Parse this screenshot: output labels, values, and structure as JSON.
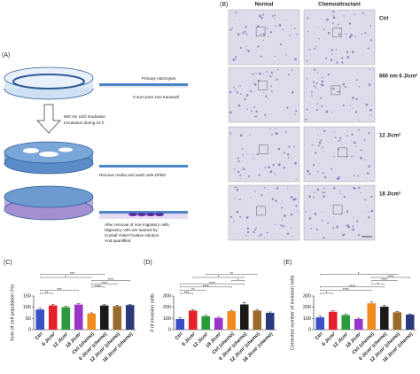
{
  "figure_a": {
    "label": "(A)",
    "transwell_labels": [
      "Primary Astrocytes",
      "0.4um pore size transwell"
    ],
    "treatment": [
      "660 nm LED irradiation",
      "Incubation during 24 h"
    ],
    "wash": "Remove media and wash with DPBS",
    "stain": [
      "After removal of non-migratory cells,",
      "Migratory cells are stained by",
      "Crystal Violet Fixative solution",
      "And quantified"
    ]
  },
  "figure_b": {
    "label": "(B)",
    "columns": [
      "Normal",
      "Chemoattractant"
    ],
    "rows": [
      "Ctrl",
      "660 nm 6 J/cm²",
      "12 J/cm²",
      "18 J/cm²"
    ]
  },
  "chart_data": [
    {
      "type": "bar",
      "panel_label": "(C)",
      "y_label": "Sum of cell population (%)",
      "categories": [
        "Ctrl",
        "6 J/cm²",
        "12 J/cm²",
        "18 J/cm²",
        "Ctrl (chemo)",
        "6 J/cm² (chemo)",
        "12 J/cm² (chemo)",
        "18 J/cm² (chemo)"
      ],
      "values": [
        90,
        108,
        100,
        112,
        72,
        108,
        105,
        110
      ],
      "errors": [
        6,
        4,
        5,
        4,
        3,
        4,
        4,
        3
      ],
      "colors": [
        "#3a4fc6",
        "#e62129",
        "#2a9a3a",
        "#9a35c9",
        "#f08b1d",
        "#1b1b1b",
        "#9a6a2b",
        "#2b3a7c"
      ],
      "ylim": [
        0,
        150
      ],
      "yticks": [
        0,
        50,
        100,
        150
      ],
      "significance": [
        {
          "between": [
            0,
            1
          ],
          "label": "**"
        },
        {
          "between": [
            0,
            3
          ],
          "label": "***"
        },
        {
          "between": [
            4,
            5
          ],
          "label": "****"
        },
        {
          "between": [
            4,
            6
          ],
          "label": "****"
        },
        {
          "between": [
            4,
            7
          ],
          "label": "****"
        },
        {
          "between": [
            0,
            4
          ],
          "label": "*"
        },
        {
          "between": [
            0,
            5
          ],
          "label": "***"
        }
      ]
    },
    {
      "type": "bar",
      "panel_label": "(D)",
      "y_label": "# of invasion cells",
      "categories": [
        "Ctrl",
        "6 J/cm²",
        "12 J/cm²",
        "18 J/cm²",
        "Ctrl (chemo)",
        "6 J/cm² (chemo)",
        "12 J/cm² (chemo)",
        "18 J/cm² (chemo)"
      ],
      "values": [
        95,
        170,
        120,
        105,
        165,
        225,
        170,
        150
      ],
      "errors": [
        10,
        8,
        8,
        7,
        8,
        18,
        10,
        8
      ],
      "colors": [
        "#3a4fc6",
        "#e62129",
        "#2a9a3a",
        "#9a35c9",
        "#f08b1d",
        "#1b1b1b",
        "#9a6a2b",
        "#2b3a7c"
      ],
      "ylim": [
        0,
        300
      ],
      "yticks": [
        0,
        100,
        200,
        300
      ],
      "significance": [
        {
          "between": [
            0,
            1
          ],
          "label": "***"
        },
        {
          "between": [
            0,
            2
          ],
          "label": "**"
        },
        {
          "between": [
            0,
            4
          ],
          "label": "****"
        },
        {
          "between": [
            0,
            5
          ],
          "label": "****"
        },
        {
          "between": [
            4,
            5
          ],
          "label": "*"
        },
        {
          "between": [
            1,
            5
          ],
          "label": "*"
        },
        {
          "between": [
            2,
            6
          ],
          "label": "**"
        }
      ]
    },
    {
      "type": "bar",
      "panel_label": "(E)",
      "y_label": "Corrected number of invasion cells",
      "categories": [
        "Ctrl",
        "6 J/cm²",
        "12 J/cm²",
        "18 J/cm²",
        "Ctrl (chemo)",
        "6 J/cm² (chemo)",
        "12 J/cm² (chemo)",
        "18 J/cm² (chemo)"
      ],
      "values": [
        110,
        160,
        130,
        95,
        235,
        205,
        155,
        135
      ],
      "errors": [
        12,
        8,
        8,
        8,
        12,
        14,
        8,
        6
      ],
      "colors": [
        "#3a4fc6",
        "#e62129",
        "#2a9a3a",
        "#9a35c9",
        "#f08b1d",
        "#1b1b1b",
        "#9a6a2b",
        "#2b3a7c"
      ],
      "ylim": [
        0,
        300
      ],
      "yticks": [
        0,
        100,
        200,
        300
      ],
      "significance": [
        {
          "between": [
            0,
            1
          ],
          "label": "*"
        },
        {
          "between": [
            0,
            4
          ],
          "label": "****"
        },
        {
          "between": [
            0,
            5
          ],
          "label": "****"
        },
        {
          "between": [
            4,
            5
          ],
          "label": "*"
        },
        {
          "between": [
            4,
            6
          ],
          "label": "****"
        },
        {
          "between": [
            4,
            7
          ],
          "label": "****"
        },
        {
          "between": [
            0,
            6
          ],
          "label": "*"
        }
      ]
    }
  ]
}
